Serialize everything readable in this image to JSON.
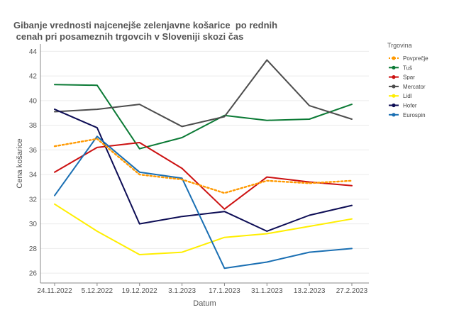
{
  "chart_data": {
    "type": "line",
    "title_lines": [
      "Gibanje vrednosti najcenejše zelenjavne košarice  po rednih",
      " cenah pri posameznih trgovcih v Sloveniji skozi čas"
    ],
    "xlabel": "Datum",
    "ylabel": "Cena košarice",
    "ylim": [
      25.2,
      44.6
    ],
    "yticks": [
      26,
      28,
      30,
      32,
      34,
      36,
      38,
      40,
      42,
      44
    ],
    "categories": [
      "24.11.2022",
      "5.12.2022",
      "19.12.2022",
      "3.1.2023",
      "17.1.2023",
      "31.1.2023",
      "13.2.2023",
      "27.2.2023"
    ],
    "grid": true,
    "legend_position": "right",
    "legend_title": "Trgovina",
    "series": [
      {
        "name": "Povprečje",
        "color": "#ff9900",
        "dash": true,
        "values": [
          36.3,
          36.9,
          34.0,
          33.6,
          32.5,
          33.5,
          33.3,
          33.5
        ]
      },
      {
        "name": "Tuš",
        "color": "#0b7a35",
        "dash": false,
        "values": [
          41.3,
          41.25,
          36.1,
          37.0,
          38.8,
          38.4,
          38.5,
          39.7
        ]
      },
      {
        "name": "Spar",
        "color": "#cc1111",
        "dash": false,
        "values": [
          34.2,
          36.2,
          36.6,
          34.5,
          31.2,
          33.8,
          33.4,
          33.1
        ]
      },
      {
        "name": "Mercator",
        "color": "#4d4d4d",
        "dash": false,
        "values": [
          39.1,
          39.3,
          39.7,
          37.9,
          38.7,
          43.3,
          39.6,
          38.5
        ]
      },
      {
        "name": "Lidl",
        "color": "#ffee00",
        "dash": false,
        "values": [
          31.6,
          29.4,
          27.5,
          27.7,
          28.9,
          29.2,
          29.8,
          30.4
        ]
      },
      {
        "name": "Hofer",
        "color": "#0d0d55",
        "dash": false,
        "values": [
          39.3,
          37.8,
          30.0,
          30.6,
          31.0,
          29.4,
          30.7,
          31.5
        ]
      },
      {
        "name": "Eurospin",
        "color": "#1a6fb3",
        "dash": false,
        "values": [
          32.3,
          37.1,
          34.2,
          33.7,
          26.4,
          26.9,
          27.7,
          28.0
        ]
      }
    ]
  }
}
